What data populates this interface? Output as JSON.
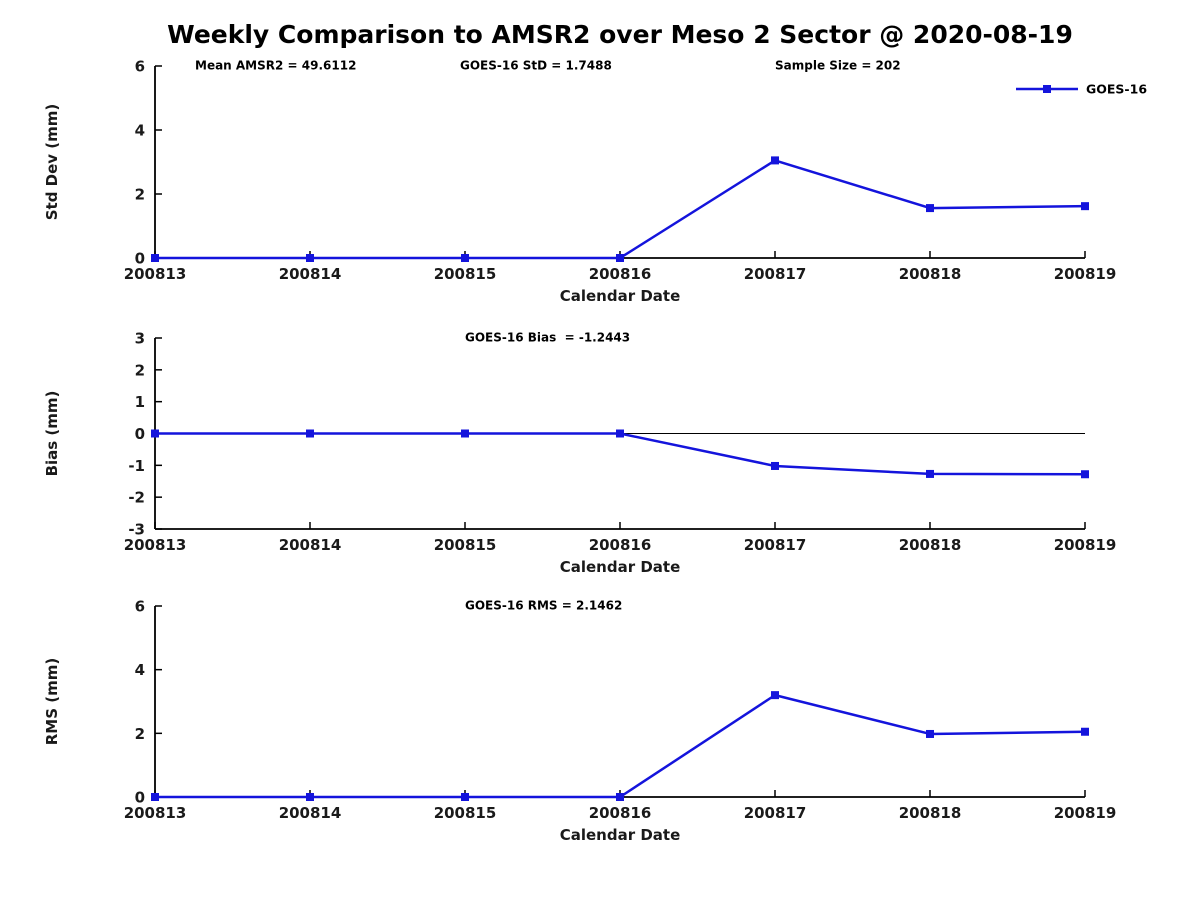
{
  "title": "Weekly Comparison to AMSR2 over Meso 2 Sector @ 2020-08-19",
  "colors": {
    "series": "#1414dc",
    "axis": "#000000",
    "text": "#1a1a1a",
    "background": "#ffffff"
  },
  "legend": {
    "label": "GOES-16",
    "position": "top-right"
  },
  "chart_data": [
    {
      "type": "line",
      "categories": [
        "200813",
        "200814",
        "200815",
        "200816",
        "200817",
        "200818",
        "200819"
      ],
      "series": [
        {
          "name": "GOES-16",
          "values": [
            0,
            0,
            0,
            0,
            3.05,
            1.56,
            1.62
          ]
        }
      ],
      "title": "",
      "xlabel": "Calendar Date",
      "ylabel": "Std Dev (mm)",
      "ylim": [
        0,
        6
      ],
      "yticks": [
        0,
        2,
        4,
        6
      ],
      "grid": false,
      "annotations": [
        {
          "text": "Mean AMSR2 = 49.6112"
        },
        {
          "text": "GOES-16 StD = 1.7488"
        },
        {
          "text": "Sample Size = 202"
        }
      ]
    },
    {
      "type": "line",
      "categories": [
        "200813",
        "200814",
        "200815",
        "200816",
        "200817",
        "200818",
        "200819"
      ],
      "series": [
        {
          "name": "GOES-16",
          "values": [
            0,
            0,
            0,
            0,
            -1.02,
            -1.27,
            -1.28
          ]
        }
      ],
      "title": "",
      "xlabel": "Calendar Date",
      "ylabel": "Bias (mm)",
      "ylim": [
        -3,
        3
      ],
      "yticks": [
        -3,
        -2,
        -1,
        0,
        1,
        2,
        3
      ],
      "grid": false,
      "zero_line": true,
      "annotations": [
        {
          "text": "GOES-16 Bias  = -1.2443"
        }
      ]
    },
    {
      "type": "line",
      "categories": [
        "200813",
        "200814",
        "200815",
        "200816",
        "200817",
        "200818",
        "200819"
      ],
      "series": [
        {
          "name": "GOES-16",
          "values": [
            0,
            0,
            0,
            0,
            3.2,
            1.98,
            2.05
          ]
        }
      ],
      "title": "",
      "xlabel": "Calendar Date",
      "ylabel": "RMS (mm)",
      "ylim": [
        0,
        6
      ],
      "yticks": [
        0,
        2,
        4,
        6
      ],
      "grid": false,
      "annotations": [
        {
          "text": "GOES-16 RMS = 2.1462"
        }
      ]
    }
  ]
}
